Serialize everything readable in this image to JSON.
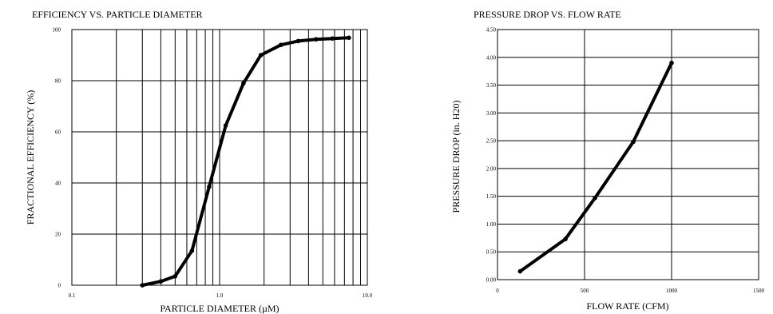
{
  "chart_data": [
    {
      "type": "line",
      "title": "EFFICIENCY VS. PARTICLE DIAMETER",
      "xlabel": "PARTICLE DIAMETER (µM)",
      "ylabel": "FRACTIONAL EFFICIENCY (%)",
      "xscale": "log",
      "xlim": [
        0.1,
        10.0
      ],
      "ylim": [
        0,
        100
      ],
      "xticks": [
        "0.1",
        "1.0",
        "10.0"
      ],
      "yticks": [
        "0",
        "20",
        "40",
        "60",
        "80",
        "100"
      ],
      "grid": true,
      "x": [
        0.3,
        0.4,
        0.5,
        0.65,
        0.85,
        1.1,
        1.45,
        1.9,
        2.6,
        3.4,
        4.5,
        5.8,
        7.5
      ],
      "y": [
        0,
        1.5,
        3.5,
        13.5,
        38.5,
        62.5,
        79,
        90,
        94,
        95.5,
        96.2,
        96.5,
        96.8
      ]
    },
    {
      "type": "line",
      "title": "PRESSURE DROP VS. FLOW RATE",
      "xlabel": "FLOW RATE (CFM)",
      "ylabel": "PRESSURE DROP (in. H20)",
      "xlim": [
        0,
        1500
      ],
      "ylim": [
        0,
        4.5
      ],
      "xticks": [
        "0",
        "500",
        "1000",
        "1500"
      ],
      "yticks": [
        "0.00",
        "0.50",
        "1.00",
        "1.50",
        "2.00",
        "2.50",
        "3.00",
        "3.50",
        "4.00",
        "4.50"
      ],
      "grid": true,
      "x": [
        130,
        390,
        560,
        780,
        1000
      ],
      "y": [
        0.15,
        0.73,
        1.47,
        2.48,
        3.9
      ]
    }
  ]
}
